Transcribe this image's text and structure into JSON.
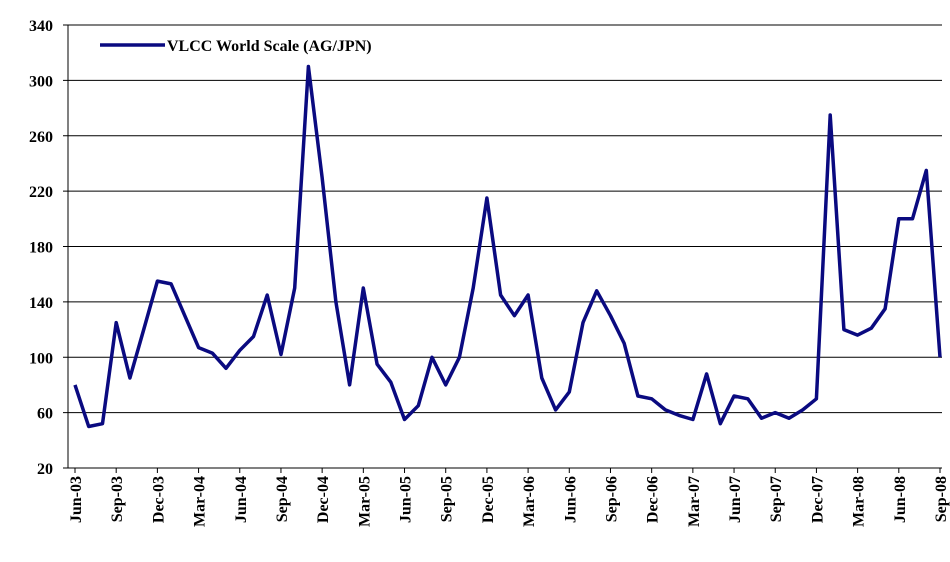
{
  "chart_data": {
    "type": "line",
    "categories": [
      "Jun-03",
      null,
      null,
      "Sep-03",
      null,
      null,
      "Dec-03",
      null,
      null,
      "Mar-04",
      null,
      null,
      "Jun-04",
      null,
      null,
      "Sep-04",
      null,
      null,
      "Dec-04",
      null,
      null,
      "Mar-05",
      null,
      null,
      "Jun-05",
      null,
      null,
      "Sep-05",
      null,
      null,
      "Dec-05",
      null,
      null,
      "Mar-06",
      null,
      null,
      "Jun-06",
      null,
      null,
      "Sep-06",
      null,
      null,
      "Dec-06",
      null,
      null,
      "Mar-07",
      null,
      null,
      "Jun-07",
      null,
      null,
      "Sep-07",
      null,
      null,
      "Dec-07",
      null,
      null,
      "Mar-08",
      null,
      null,
      "Jun-08",
      null,
      null,
      "Sep-08"
    ],
    "series": [
      {
        "name": "VLCC World Scale (AG/JPN)",
        "color": "#0a0a80",
        "values": [
          80,
          50,
          52,
          125,
          85,
          120,
          155,
          153,
          130,
          107,
          103,
          92,
          105,
          115,
          145,
          102,
          150,
          310,
          230,
          140,
          80,
          150,
          95,
          82,
          55,
          65,
          100,
          80,
          100,
          150,
          215,
          145,
          130,
          145,
          85,
          62,
          75,
          125,
          148,
          130,
          110,
          72,
          70,
          62,
          58,
          55,
          88,
          52,
          72,
          70,
          56,
          60,
          56,
          62,
          70,
          275,
          120,
          116,
          121,
          135,
          200,
          200,
          235,
          100
        ]
      }
    ],
    "ylim": [
      20,
      340
    ],
    "yticks": [
      20,
      60,
      100,
      140,
      180,
      220,
      260,
      300,
      340
    ],
    "grid": true,
    "legend": "upper-left"
  }
}
